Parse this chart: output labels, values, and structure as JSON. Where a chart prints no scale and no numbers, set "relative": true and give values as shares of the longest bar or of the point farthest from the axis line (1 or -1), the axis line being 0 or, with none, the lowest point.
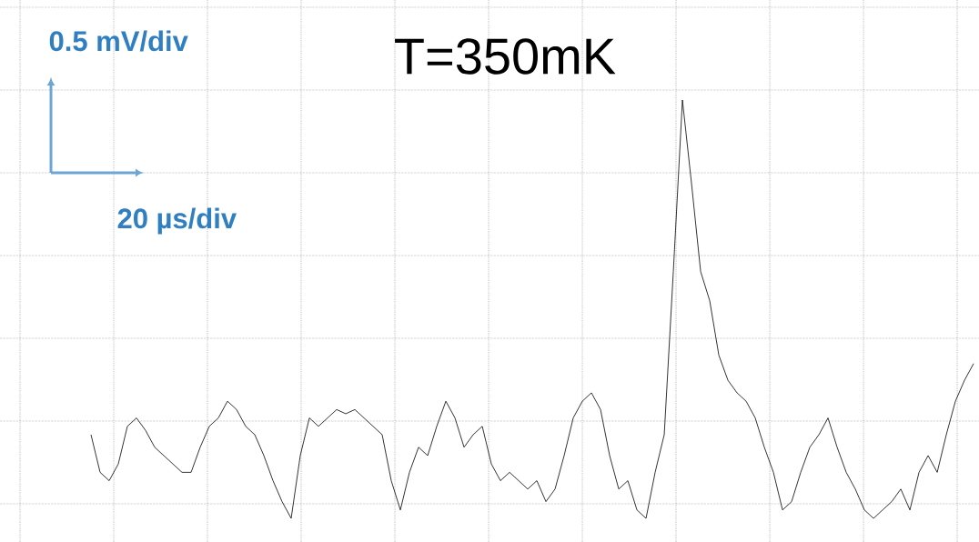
{
  "chart_data": {
    "type": "line",
    "title": "T=350mK",
    "relative": true,
    "grid": true,
    "annotations": [
      "0.5 mV/div",
      "20 µs/div"
    ],
    "categories": [
      null,
      null,
      null,
      null,
      null,
      null,
      null,
      null,
      null,
      null,
      null,
      null,
      null,
      null,
      null,
      null,
      null,
      null,
      null,
      null,
      null,
      null,
      null,
      null,
      null,
      null,
      null,
      null,
      null,
      null,
      null,
      null,
      null,
      null,
      null,
      null,
      null,
      null,
      null,
      null,
      null,
      null,
      null,
      null,
      null,
      null,
      null,
      null,
      null,
      null,
      null,
      null,
      null,
      null,
      null,
      null,
      null,
      null,
      null,
      null,
      null,
      null,
      null,
      null,
      null,
      null,
      null,
      null,
      null,
      null,
      null,
      null,
      null,
      null,
      null,
      null,
      null,
      null,
      null,
      null,
      null,
      null,
      null,
      null,
      null,
      null,
      null,
      null,
      null,
      null,
      null,
      null,
      null,
      null,
      null,
      null,
      null,
      null
    ],
    "series": [
      {
        "color": "#000000",
        "values": [
          0.2,
          0.11,
          0.09,
          0.13,
          0.22,
          0.24,
          0.21,
          0.17,
          0.15,
          0.13,
          0.11,
          0.11,
          0.17,
          0.22,
          0.24,
          0.28,
          0.26,
          0.22,
          0.2,
          0.15,
          0.09,
          0.04,
          0,
          0.15,
          0.24,
          0.22,
          0.24,
          0.26,
          0.25,
          0.26,
          0.24,
          0.22,
          0.2,
          0.09,
          0.02,
          0.11,
          0.17,
          0.15,
          0.22,
          0.28,
          0.24,
          0.17,
          0.2,
          0.22,
          0.13,
          0.09,
          0.11,
          0.09,
          0.07,
          0.09,
          0.04,
          0.07,
          0.15,
          0.24,
          0.28,
          0.3,
          0.26,
          0.15,
          0.07,
          0.09,
          0.02,
          0,
          0.11,
          0.2,
          0.59,
          1,
          0.8,
          0.59,
          0.52,
          0.39,
          0.33,
          0.3,
          0.28,
          0.24,
          0.17,
          0.11,
          0.02,
          0.04,
          0.11,
          0.17,
          0.2,
          0.24,
          0.17,
          0.11,
          0.07,
          0.02,
          0,
          0.02,
          0.04,
          0.07,
          0.02,
          0.11,
          0.15,
          0.11,
          0.2,
          0.28,
          0.33,
          0.37
        ]
      }
    ]
  }
}
